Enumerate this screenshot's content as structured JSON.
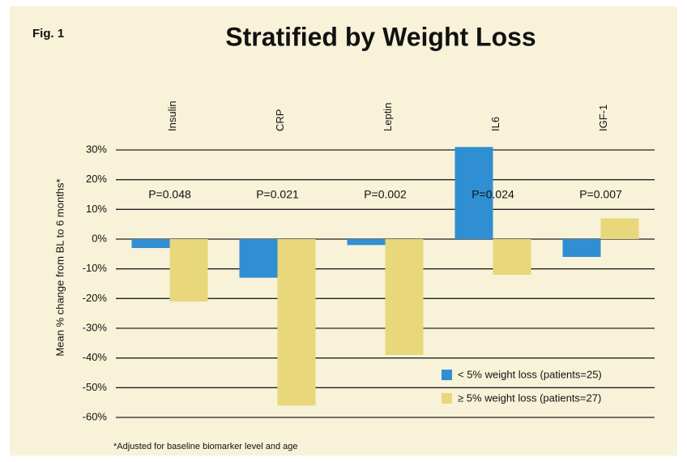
{
  "chart_data": {
    "type": "bar",
    "fig_label": "Fig. 1",
    "title": "Stratified by Weight Loss",
    "y_label": "Mean % change from BL to 6 months*",
    "footnote": "*Adjusted for baseline biomarker level and age",
    "categories": [
      "Insulin",
      "CRP",
      "Leptin",
      "IL6",
      "IGF-1"
    ],
    "annotations": [
      "P=0.048",
      "P=0.021",
      "P=0.002",
      "P=0.024",
      "P=0.007"
    ],
    "series": [
      {
        "name": "< 5% weight loss (patients=25)",
        "color": "#2f8fd2",
        "values": [
          -3,
          -13,
          -2,
          31,
          -6
        ]
      },
      {
        "name": "≥ 5% weight loss (patients=27)",
        "color": "#e8d77b",
        "values": [
          -21,
          -56,
          -39,
          -12,
          7
        ]
      }
    ],
    "ylim": [
      -60,
      30
    ],
    "yticks": [
      {
        "value": 30,
        "label": "30%"
      },
      {
        "value": 20,
        "label": "20%"
      },
      {
        "value": 10,
        "label": "10%"
      },
      {
        "value": 0,
        "label": "0%"
      },
      {
        "value": -10,
        "label": "-10%"
      },
      {
        "value": -20,
        "label": "-20%"
      },
      {
        "value": -30,
        "label": "-30%"
      },
      {
        "value": -40,
        "label": "-40%"
      },
      {
        "value": -50,
        "label": "-50%"
      },
      {
        "value": -60,
        "label": "-60%"
      }
    ],
    "grid": true,
    "legend": "lower right"
  }
}
